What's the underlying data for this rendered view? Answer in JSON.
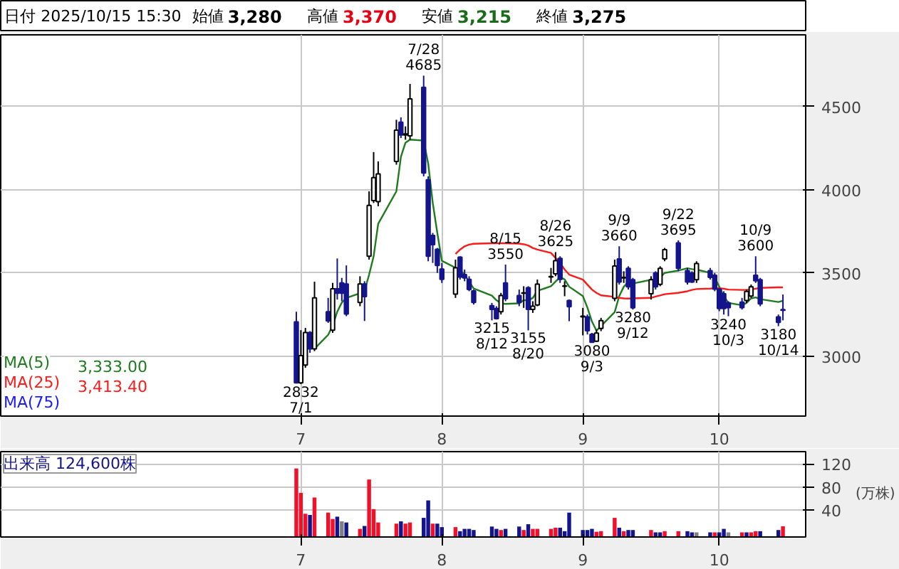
{
  "chart_data": [
    {
      "type": "candlestick",
      "title": "日付 2025/10/15 15:30",
      "annotations": [
        "始値 3,280",
        "高値 3,370",
        "安値 3,215",
        "終値 3,275",
        "3,333.00",
        "3,413.40",
        {
          "text": "7/28\n4685",
          "x": "2025-07-28",
          "y": 4685
        },
        {
          "text": "2832\n7/1",
          "x": "2025-07-01",
          "y": 2832
        },
        {
          "text": "8/15\n3550",
          "x": "2025-08-15",
          "y": 3550
        },
        {
          "text": "3215\n8/12",
          "x": "2025-08-12",
          "y": 3215
        },
        {
          "text": "8/26\n3625",
          "x": "2025-08-26",
          "y": 3625
        },
        {
          "text": "3155\n8/20",
          "x": "2025-08-20",
          "y": 3155
        },
        {
          "text": "9/9\n3660",
          "x": "2025-09-09",
          "y": 3660
        },
        {
          "text": "3080\n9/3",
          "x": "2025-09-03",
          "y": 3080
        },
        {
          "text": "3280\n9/12",
          "x": "2025-09-12",
          "y": 3280
        },
        {
          "text": "9/22\n3695",
          "x": "2025-09-22",
          "y": 3695
        },
        {
          "text": "10/9\n3600",
          "x": "2025-10-09",
          "y": 3600
        },
        {
          "text": "3240\n10/3",
          "x": "2025-10-03",
          "y": 3240
        },
        {
          "text": "3180\n10/14",
          "x": "2025-10-14",
          "y": 3180
        }
      ],
      "x": [
        "2025-06-30",
        "2025-07-01",
        "2025-07-02",
        "2025-07-03",
        "2025-07-04",
        "2025-07-07",
        "2025-07-08",
        "2025-07-09",
        "2025-07-10",
        "2025-07-11",
        "2025-07-14",
        "2025-07-15",
        "2025-07-16",
        "2025-07-17",
        "2025-07-18",
        "2025-07-22",
        "2025-07-23",
        "2025-07-24",
        "2025-07-25",
        "2025-07-28",
        "2025-07-29",
        "2025-07-30",
        "2025-07-31",
        "2025-08-01",
        "2025-08-04",
        "2025-08-05",
        "2025-08-06",
        "2025-08-07",
        "2025-08-08",
        "2025-08-12",
        "2025-08-13",
        "2025-08-14",
        "2025-08-15",
        "2025-08-18",
        "2025-08-19",
        "2025-08-20",
        "2025-08-21",
        "2025-08-22",
        "2025-08-25",
        "2025-08-26",
        "2025-08-27",
        "2025-08-28",
        "2025-08-29",
        "2025-09-01",
        "2025-09-02",
        "2025-09-03",
        "2025-09-04",
        "2025-09-05",
        "2025-09-08",
        "2025-09-09",
        "2025-09-10",
        "2025-09-11",
        "2025-09-12",
        "2025-09-16",
        "2025-09-17",
        "2025-09-18",
        "2025-09-19",
        "2025-09-22",
        "2025-09-24",
        "2025-09-25",
        "2025-09-26",
        "2025-09-29",
        "2025-09-30",
        "2025-10-01",
        "2025-10-02",
        "2025-10-03",
        "2025-10-06",
        "2025-10-07",
        "2025-10-08",
        "2025-10-09",
        "2025-10-10",
        "2025-10-14",
        "2025-10-15"
      ],
      "ohlc": [
        [
          3206,
          3267,
          2836,
          2840
        ],
        [
          2840,
          3156,
          2832,
          3003
        ],
        [
          2947,
          3170,
          2930,
          3142
        ],
        [
          3142,
          3150,
          3020,
          3044
        ],
        [
          3044,
          3447,
          3030,
          3350
        ],
        [
          3267,
          3350,
          3200,
          3211
        ],
        [
          3156,
          3440,
          3140,
          3405
        ],
        [
          3405,
          3587,
          3340,
          3378
        ],
        [
          3440,
          3470,
          3330,
          3378
        ],
        [
          3434,
          3545,
          3240,
          3253
        ],
        [
          3322,
          3480,
          3300,
          3434
        ],
        [
          3434,
          3450,
          3211,
          3358
        ],
        [
          3600,
          3990,
          3580,
          3906
        ],
        [
          3934,
          4226,
          3920,
          4072
        ],
        [
          3928,
          4170,
          3900,
          4095
        ],
        [
          4170,
          4420,
          4150,
          4357
        ],
        [
          4406,
          4434,
          4310,
          4329
        ],
        [
          4329,
          4380,
          4300,
          4335
        ],
        [
          4323,
          4635,
          4300,
          4546
        ],
        [
          4615,
          4685,
          4080,
          4100
        ],
        [
          4060,
          4080,
          3570,
          3600
        ],
        [
          3725,
          3740,
          3560,
          3670
        ],
        [
          3642,
          3650,
          3500,
          3545
        ],
        [
          3523,
          3560,
          3440,
          3461
        ],
        [
          3373,
          3580,
          3350,
          3531
        ],
        [
          3595,
          3600,
          3460,
          3475
        ],
        [
          3490,
          3520,
          3450,
          3470
        ],
        [
          3461,
          3480,
          3390,
          3400
        ],
        [
          3392,
          3400,
          3310,
          3322
        ],
        [
          3303,
          3320,
          3215,
          3281
        ],
        [
          3286,
          3300,
          3220,
          3225
        ],
        [
          3267,
          3380,
          3250,
          3364
        ],
        [
          3440,
          3550,
          3330,
          3345
        ],
        [
          3364,
          3400,
          3300,
          3322
        ],
        [
          3378,
          3420,
          3290,
          3380
        ],
        [
          3411,
          3420,
          3155,
          3281
        ],
        [
          3281,
          3330,
          3260,
          3300
        ],
        [
          3308,
          3460,
          3300,
          3433
        ],
        [
          3475,
          3530,
          3440,
          3478
        ],
        [
          3495,
          3625,
          3480,
          3573
        ],
        [
          3587,
          3600,
          3440,
          3461
        ],
        [
          3420,
          3450,
          3360,
          3422
        ],
        [
          3334,
          3340,
          3210,
          3297
        ],
        [
          3236,
          3290,
          3125,
          3240
        ],
        [
          3236,
          3250,
          3130,
          3153
        ],
        [
          3131,
          3140,
          3080,
          3083
        ],
        [
          3090,
          3160,
          3085,
          3139
        ],
        [
          3167,
          3230,
          3150,
          3214
        ],
        [
          3347,
          3580,
          3330,
          3542
        ],
        [
          3584,
          3660,
          3430,
          3445
        ],
        [
          3470,
          3510,
          3440,
          3473
        ],
        [
          3528,
          3540,
          3400,
          3417
        ],
        [
          3459,
          3470,
          3280,
          3290
        ],
        [
          3375,
          3480,
          3340,
          3459
        ],
        [
          3500,
          3510,
          3400,
          3417
        ],
        [
          3431,
          3540,
          3420,
          3528
        ],
        [
          3584,
          3650,
          3570,
          3640
        ],
        [
          3680,
          3695,
          3510,
          3528
        ],
        [
          3514,
          3530,
          3430,
          3445
        ],
        [
          3500,
          3510,
          3440,
          3445
        ],
        [
          3459,
          3570,
          3440,
          3556
        ],
        [
          3514,
          3530,
          3460,
          3473
        ],
        [
          3486,
          3500,
          3390,
          3403
        ],
        [
          3403,
          3410,
          3270,
          3286
        ],
        [
          3375,
          3390,
          3250,
          3286
        ],
        [
          3320,
          3330,
          3240,
          3292
        ],
        [
          3325,
          3350,
          3280,
          3292
        ],
        [
          3334,
          3400,
          3320,
          3389
        ],
        [
          3361,
          3430,
          3350,
          3417
        ],
        [
          3486,
          3600,
          3440,
          3453
        ],
        [
          3459,
          3470,
          3300,
          3314
        ],
        [
          3236,
          3250,
          3180,
          3203
        ],
        [
          3280,
          3370,
          3215,
          3275
        ]
      ],
      "colors": [
        "#14148c",
        "#ffffff",
        "#ffffff",
        "#14148c",
        "#ffffff",
        "#14148c",
        "#ffffff",
        "#14148c",
        "#14148c",
        "#14148c",
        "#ffffff",
        "#14148c",
        "#ffffff",
        "#ffffff",
        "#ffffff",
        "#ffffff",
        "#14148c",
        "#ffffff",
        "#ffffff",
        "#14148c",
        "#14148c",
        "#14148c",
        "#14148c",
        "#14148c",
        "#ffffff",
        "#14148c",
        "#14148c",
        "#14148c",
        "#14148c",
        "#14148c",
        "#14148c",
        "#ffffff",
        "#14148c",
        "#14148c",
        "#ffffff",
        "#14148c",
        "#ffffff",
        "#ffffff",
        "#ffffff",
        "#ffffff",
        "#14148c",
        "#ffffff",
        "#14148c",
        "#ffffff",
        "#14148c",
        "#14148c",
        "#ffffff",
        "#ffffff",
        "#ffffff",
        "#14148c",
        "#ffffff",
        "#14148c",
        "#14148c",
        "#ffffff",
        "#14148c",
        "#ffffff",
        "#ffffff",
        "#14148c",
        "#14148c",
        "#14148c",
        "#ffffff",
        "#14148c",
        "#14148c",
        "#14148c",
        "#14148c",
        "#14148c",
        "#14148c",
        "#ffffff",
        "#ffffff",
        "#14148c",
        "#14148c",
        "#14148c",
        "#14148c"
      ],
      "xlim": [
        "2025-04-26",
        "2025-10-20"
      ],
      "series": [
        {
          "type": "line",
          "name": "MA(5)",
          "color": "#1e7b1e",
          "values": [
            null,
            null,
            null,
            null,
            3044,
            3128,
            3183,
            3267,
            3322,
            3350,
            3378,
            3392,
            3489,
            3600,
            3795,
            3990,
            4198,
            4282,
            4301,
            4295,
            4156,
            3920,
            3740,
            3573,
            3531,
            3517,
            3489,
            3448,
            3406,
            3364,
            3336,
            3317,
            3314,
            3317,
            3336,
            3336,
            3350,
            3392,
            3420,
            3448,
            3475,
            3461,
            3417,
            3361,
            3292,
            3208,
            3153,
            3181,
            3264,
            3361,
            3417,
            3445,
            3436,
            3459,
            3459,
            3473,
            3500,
            3514,
            3528,
            3523,
            3520,
            3500,
            3473,
            3417,
            3361,
            3320,
            3306,
            3320,
            3347,
            3353,
            3342,
            3325,
            3333
          ]
        },
        {
          "type": "line",
          "name": "MA(25)",
          "color": "#ff1a1a",
          "values": [
            null,
            null,
            null,
            null,
            null,
            null,
            null,
            null,
            null,
            null,
            null,
            null,
            null,
            null,
            null,
            null,
            null,
            null,
            null,
            null,
            null,
            null,
            null,
            null,
            3614,
            3640,
            3660,
            3670,
            3675,
            3678,
            3678,
            3678,
            3678,
            3676,
            3672,
            3665,
            3650,
            3640,
            3620,
            3590,
            3560,
            3520,
            3490,
            3460,
            3430,
            3400,
            3380,
            3365,
            3356,
            3350,
            3347,
            3346,
            3347,
            3350,
            3358,
            3365,
            3372,
            3380,
            3390,
            3398,
            3403,
            3406,
            3408,
            3408,
            3405,
            3400,
            3398,
            3398,
            3400,
            3405,
            3410,
            3413,
            3413.4
          ]
        },
        {
          "type": "line",
          "name": "MA(75)",
          "color": "#1a1aff",
          "values": [
            null,
            null,
            null,
            null,
            null,
            null,
            null,
            null,
            null,
            null,
            null,
            null,
            null,
            null,
            null,
            null,
            null,
            null,
            null,
            null,
            null,
            null,
            null,
            null,
            null,
            null,
            null,
            null,
            null,
            null,
            null,
            null,
            null,
            null,
            null,
            null,
            null,
            null,
            null,
            null,
            null,
            null,
            null,
            null,
            null,
            null,
            null,
            null,
            null,
            null,
            null,
            null,
            null,
            null,
            null,
            null,
            null,
            null,
            null,
            null,
            null,
            null,
            null,
            null,
            null,
            null,
            null,
            null,
            null,
            null,
            null,
            null,
            null
          ]
        }
      ],
      "ylim": [
        2640,
        4930
      ],
      "yticks": [
        3000,
        3500,
        4000,
        4500
      ],
      "xticks": [
        {
          "value": "2025-07-01",
          "label": "7"
        },
        {
          "value": "2025-08-01",
          "label": "8"
        },
        {
          "value": "2025-09-01",
          "label": "9"
        },
        {
          "value": "2025-10-01",
          "label": "10"
        }
      ],
      "grid": true,
      "legend": "bottom left"
    },
    {
      "type": "bar",
      "title": "出来高 124,600株",
      "ylabel": "(万株)",
      "x": [
        "2025-06-30",
        "2025-07-01",
        "2025-07-02",
        "2025-07-03",
        "2025-07-04",
        "2025-07-07",
        "2025-07-08",
        "2025-07-09",
        "2025-07-10",
        "2025-07-11",
        "2025-07-14",
        "2025-07-15",
        "2025-07-16",
        "2025-07-17",
        "2025-07-18",
        "2025-07-22",
        "2025-07-23",
        "2025-07-24",
        "2025-07-25",
        "2025-07-28",
        "2025-07-29",
        "2025-07-30",
        "2025-07-31",
        "2025-08-01",
        "2025-08-04",
        "2025-08-05",
        "2025-08-06",
        "2025-08-07",
        "2025-08-08",
        "2025-08-12",
        "2025-08-13",
        "2025-08-14",
        "2025-08-15",
        "2025-08-18",
        "2025-08-19",
        "2025-08-20",
        "2025-08-21",
        "2025-08-22",
        "2025-08-25",
        "2025-08-26",
        "2025-08-27",
        "2025-08-28",
        "2025-08-29",
        "2025-09-01",
        "2025-09-02",
        "2025-09-03",
        "2025-09-04",
        "2025-09-05",
        "2025-09-08",
        "2025-09-09",
        "2025-09-10",
        "2025-09-11",
        "2025-09-12",
        "2025-09-16",
        "2025-09-17",
        "2025-09-18",
        "2025-09-19",
        "2025-09-22",
        "2025-09-24",
        "2025-09-25",
        "2025-09-26",
        "2025-09-29",
        "2025-09-30",
        "2025-10-01",
        "2025-10-02",
        "2025-10-03",
        "2025-10-06",
        "2025-10-07",
        "2025-10-08",
        "2025-10-09",
        "2025-10-10",
        "2025-10-14",
        "2025-10-15"
      ],
      "values": [
        112,
        70,
        34,
        32,
        62,
        36,
        25,
        29,
        21,
        19,
        8,
        13,
        93,
        42,
        19,
        17,
        21,
        17,
        19,
        27,
        57,
        17,
        17,
        11,
        11,
        4,
        8,
        8,
        6,
        12,
        8,
        6,
        8,
        12,
        6,
        16,
        8,
        8,
        8,
        10,
        10,
        4,
        36,
        6,
        6,
        8,
        3,
        4,
        27,
        10,
        4,
        6,
        6,
        6,
        2,
        2,
        4,
        4,
        4,
        2,
        2,
        2,
        2,
        2,
        8,
        2,
        2,
        2,
        2,
        4,
        4,
        6,
        12.5
      ],
      "xlim": [
        "2025-04-26",
        "2025-10-20"
      ],
      "colors": [
        "#f0102a",
        "#f0102a",
        "#f0102a",
        "#14148c",
        "#f0102a",
        "#f0102a",
        "#f0102a",
        "#14148c",
        "#808080",
        "#14148c",
        "#f0102a",
        "#14148c",
        "#f0102a",
        "#f0102a",
        "#f0102a",
        "#f0102a",
        "#14148c",
        "#f0102a",
        "#f0102a",
        "#14148c",
        "#14148c",
        "#f0102a",
        "#14148c",
        "#14148c",
        "#f0102a",
        "#14148c",
        "#14148c",
        "#14148c",
        "#14148c",
        "#14148c",
        "#14148c",
        "#f0102a",
        "#14148c",
        "#14148c",
        "#f0102a",
        "#14148c",
        "#f0102a",
        "#f0102a",
        "#f0102a",
        "#f0102a",
        "#14148c",
        "#14148c",
        "#14148c",
        "#14148c",
        "#14148c",
        "#14148c",
        "#f0102a",
        "#f0102a",
        "#f0102a",
        "#14148c",
        "#f0102a",
        "#14148c",
        "#14148c",
        "#f0102a",
        "#14148c",
        "#14148c",
        "#f0102a",
        "#f0102a",
        "#14148c",
        "#14148c",
        "#808080",
        "#14148c",
        "#f0102a",
        "#14148c",
        "#14148c",
        "#808080",
        "#f0102a",
        "#14148c",
        "#f0102a",
        "#f0102a",
        "#14148c",
        "#14148c",
        "#f0102a"
      ],
      "ylim": [
        -6,
        141
      ],
      "yticks": [
        40,
        80,
        120
      ],
      "xticks": [
        {
          "value": "2025-07-01",
          "label": "7"
        },
        {
          "value": "2025-08-01",
          "label": "8"
        },
        {
          "value": "2025-09-01",
          "label": "9"
        },
        {
          "value": "2025-10-01",
          "label": "10"
        }
      ],
      "grid": true
    }
  ]
}
